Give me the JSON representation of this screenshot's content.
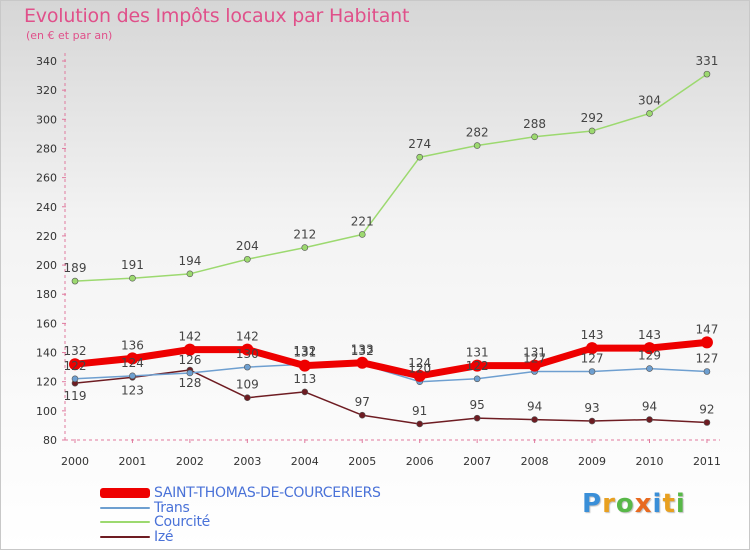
{
  "header": {
    "title": "Evolution des Impôts locaux par Habitant",
    "subtitle": "(en € et par an)"
  },
  "logo": {
    "text": "Proxiti",
    "letters": [
      "P",
      "r",
      "o",
      "x",
      "i",
      "t",
      "i"
    ]
  },
  "colors": {
    "title": "#e0508a",
    "saint_thomas": "#ee0000",
    "trans": "#6e9fd0",
    "courcite": "#9cd96f",
    "ize": "#6e1c22",
    "legend_text": "#4a72d8"
  },
  "chart_data": {
    "type": "line",
    "title": "Evolution des Impôts locaux par Habitant",
    "subtitle": "(en € et par an)",
    "xlabel": "",
    "ylabel": "",
    "categories": [
      "2000",
      "2001",
      "2002",
      "2003",
      "2004",
      "2005",
      "2006",
      "2007",
      "2008",
      "2009",
      "2010",
      "2011"
    ],
    "ylim": [
      80,
      340
    ],
    "yticks": [
      80,
      100,
      120,
      140,
      160,
      180,
      200,
      220,
      240,
      260,
      280,
      300,
      320,
      340
    ],
    "grid": false,
    "legend_position": "bottom-left",
    "series": [
      {
        "name": "SAINT-THOMAS-DE-COURCERIERS",
        "color": "#ee0000",
        "values": [
          132,
          136,
          142,
          142,
          131,
          133,
          124,
          131,
          131,
          143,
          143,
          147
        ],
        "labels": [
          "132",
          "136",
          "142",
          "142",
          "131",
          "133",
          "124",
          "131",
          "131",
          "143",
          "143",
          "147"
        ]
      },
      {
        "name": "Trans",
        "color": "#6e9fd0",
        "values": [
          122,
          124,
          126,
          130,
          132,
          132,
          120,
          122,
          127,
          127,
          129,
          127
        ],
        "labels": [
          "122",
          "124",
          "126",
          "130",
          "132",
          "132",
          "120",
          "122",
          "127",
          "127",
          "129",
          "127"
        ]
      },
      {
        "name": "Courcité",
        "color": "#9cd96f",
        "values": [
          189,
          191,
          194,
          204,
          212,
          221,
          274,
          282,
          288,
          292,
          304,
          331
        ],
        "labels": [
          "189",
          "191",
          "194",
          "204",
          "212",
          "221",
          "274",
          "282",
          "288",
          "292",
          "304",
          "331"
        ]
      },
      {
        "name": "Izé",
        "color": "#6e1c22",
        "values": [
          119,
          123,
          128,
          109,
          113,
          97,
          91,
          95,
          94,
          93,
          94,
          92
        ],
        "labels": [
          "119",
          "123",
          "128",
          "109",
          "113",
          "97",
          "91",
          "95",
          "94",
          "93",
          "94",
          "92"
        ]
      }
    ]
  }
}
